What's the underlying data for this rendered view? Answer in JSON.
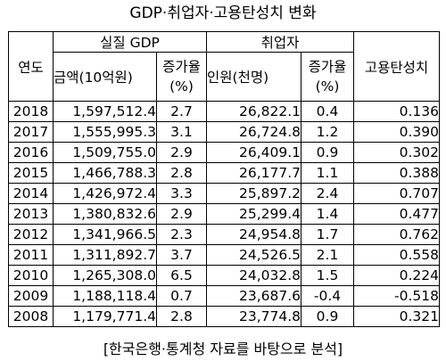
{
  "title": "GDP·취업자·고용탄성치 변화",
  "headers": {
    "year": "연도",
    "real_gdp": "실질 GDP",
    "gdp_amount": "금액(10억원)",
    "gdp_growth_line1": "증가율",
    "gdp_growth_line2": "(%)",
    "employed": "취업자",
    "employed_count": "인원(천명)",
    "emp_growth_line1": "증가율",
    "emp_growth_line2": "(%)",
    "elasticity": "고용탄성치"
  },
  "rows": [
    {
      "year": "2018",
      "gdp": "1,597,512.4",
      "gdp_growth": "2.7",
      "employed": "26,822.1",
      "emp_growth": "0.4",
      "elasticity": "0.136"
    },
    {
      "year": "2017",
      "gdp": "1,555,995.3",
      "gdp_growth": "3.1",
      "employed": "26,724.8",
      "emp_growth": "1.2",
      "elasticity": "0.390"
    },
    {
      "year": "2016",
      "gdp": "1,509,755.0",
      "gdp_growth": "2.9",
      "employed": "26,409.1",
      "emp_growth": "0.9",
      "elasticity": "0.302"
    },
    {
      "year": "2015",
      "gdp": "1,466,788.3",
      "gdp_growth": "2.8",
      "employed": "26,177.7",
      "emp_growth": "1.1",
      "elasticity": "0.388"
    },
    {
      "year": "2014",
      "gdp": "1,426,972.4",
      "gdp_growth": "3.3",
      "employed": "25,897.2",
      "emp_growth": "2.4",
      "elasticity": "0.707"
    },
    {
      "year": "2013",
      "gdp": "1,380,832.6",
      "gdp_growth": "2.9",
      "employed": "25,299.4",
      "emp_growth": "1.4",
      "elasticity": "0.477"
    },
    {
      "year": "2012",
      "gdp": "1,341,966.5",
      "gdp_growth": "2.3",
      "employed": "24,954.8",
      "emp_growth": "1.7",
      "elasticity": "0.762"
    },
    {
      "year": "2011",
      "gdp": "1,311,892.7",
      "gdp_growth": "3.7",
      "employed": "24,526.5",
      "emp_growth": "2.1",
      "elasticity": "0.558"
    },
    {
      "year": "2010",
      "gdp": "1,265,308.0",
      "gdp_growth": "6.5",
      "employed": "24,032.8",
      "emp_growth": "1.5",
      "elasticity": "0.224"
    },
    {
      "year": "2009",
      "gdp": "1,188,118.4",
      "gdp_growth": "0.7",
      "employed": "23,687.6",
      "emp_growth": "-0.4",
      "elasticity": "-0.518"
    },
    {
      "year": "2008",
      "gdp": "1,179,771.4",
      "gdp_growth": "2.8",
      "employed": "23,774.8",
      "emp_growth": "0.9",
      "elasticity": "0.321"
    }
  ],
  "source_note": "[한국은행·통계청 자료를 바탕으로 분석]"
}
